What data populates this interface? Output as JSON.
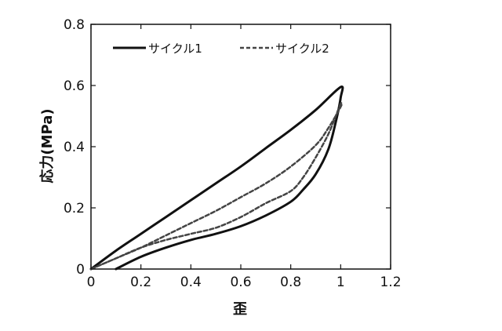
{
  "chart_data": {
    "type": "line",
    "title": "",
    "xlabel": "歪",
    "ylabel": "応力(MPa)",
    "xlim": [
      0,
      1.2
    ],
    "ylim": [
      0,
      0.8
    ],
    "xticks": [
      "0",
      "0.2",
      "0.4",
      "0.6",
      "0.8",
      "1",
      "1.2"
    ],
    "yticks": [
      "0",
      "0.2",
      "0.4",
      "0.6",
      "0.8"
    ],
    "grid": false,
    "legend_position": "top",
    "series": [
      {
        "name": "サイクル1",
        "style": "solid",
        "color": "#111111",
        "x": [
          0.1,
          0.2,
          0.3,
          0.4,
          0.5,
          0.6,
          0.7,
          0.8,
          0.85,
          0.9,
          0.95,
          0.98,
          1.0,
          1.0,
          0.9,
          0.8,
          0.7,
          0.6,
          0.5,
          0.4,
          0.3,
          0.2,
          0.1,
          0.0
        ],
        "y": [
          0.0,
          0.04,
          0.07,
          0.095,
          0.115,
          0.14,
          0.175,
          0.22,
          0.26,
          0.31,
          0.39,
          0.48,
          0.56,
          0.595,
          0.52,
          0.455,
          0.395,
          0.335,
          0.28,
          0.225,
          0.17,
          0.115,
          0.06,
          0.0
        ]
      },
      {
        "name": "サイクル2",
        "style": "dashed",
        "color": "#444444",
        "x": [
          0.0,
          0.1,
          0.2,
          0.3,
          0.4,
          0.5,
          0.6,
          0.7,
          0.8,
          0.85,
          0.9,
          0.95,
          0.98,
          1.0,
          1.0,
          0.95,
          0.9,
          0.8,
          0.7,
          0.6,
          0.5,
          0.4,
          0.3,
          0.2,
          0.1,
          0.0
        ],
        "y": [
          0.0,
          0.035,
          0.07,
          0.095,
          0.115,
          0.135,
          0.17,
          0.215,
          0.255,
          0.3,
          0.365,
          0.44,
          0.5,
          0.54,
          0.53,
          0.46,
          0.405,
          0.335,
          0.28,
          0.235,
          0.19,
          0.15,
          0.11,
          0.07,
          0.035,
          0.0
        ]
      }
    ]
  }
}
